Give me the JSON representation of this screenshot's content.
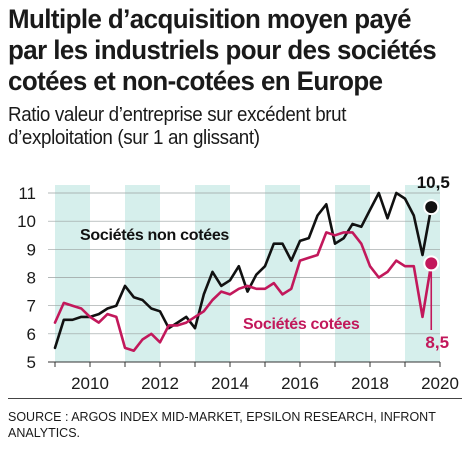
{
  "header": {
    "title": "Multiple d’acquisition moyen payé par les industriels pour des sociétés cotées et non-cotées en Europe",
    "subtitle": "Ratio valeur d’entreprise sur excédent brut d’exploitation (sur 1 an glissant)"
  },
  "source": "SOURCE : ARGOS INDEX MID-MARKET, EPSILON RESEARCH, INFRONT ANALYTICS.",
  "chart_data": {
    "type": "line",
    "x_ticks": [
      "2010",
      "2012",
      "2014",
      "2016",
      "2018",
      "2020"
    ],
    "y_ticks": [
      "5",
      "6",
      "7",
      "8",
      "9",
      "10",
      "11"
    ],
    "ylim": [
      5,
      11
    ],
    "xlim": [
      2008.8,
      2020.0
    ],
    "grid": true,
    "legend": "inline labels",
    "series": [
      {
        "name": "Sociétés non cotées",
        "color": "#111111",
        "end_label": "10,5",
        "x": [
          2009.0,
          2009.25,
          2009.5,
          2009.75,
          2010.0,
          2010.25,
          2010.5,
          2010.75,
          2011.0,
          2011.25,
          2011.5,
          2011.75,
          2012.0,
          2012.25,
          2012.5,
          2012.75,
          2013.0,
          2013.25,
          2013.5,
          2013.75,
          2014.0,
          2014.25,
          2014.5,
          2014.75,
          2015.0,
          2015.25,
          2015.5,
          2015.75,
          2016.0,
          2016.25,
          2016.5,
          2016.75,
          2017.0,
          2017.25,
          2017.5,
          2017.75,
          2018.0,
          2018.25,
          2018.5,
          2018.75,
          2019.0,
          2019.25,
          2019.5,
          2019.75
        ],
        "values": [
          5.5,
          6.5,
          6.5,
          6.6,
          6.6,
          6.7,
          6.9,
          7.0,
          7.7,
          7.3,
          7.2,
          6.9,
          6.8,
          6.2,
          6.4,
          6.6,
          6.2,
          7.4,
          8.2,
          7.7,
          7.9,
          8.4,
          7.5,
          8.1,
          8.4,
          9.2,
          9.2,
          8.6,
          9.3,
          9.4,
          10.2,
          10.6,
          9.2,
          9.4,
          9.9,
          9.8,
          10.4,
          11.0,
          10.1,
          11.0,
          10.8,
          10.2,
          8.8,
          10.5
        ]
      },
      {
        "name": "Sociétés cotées",
        "color": "#c2185b",
        "end_label": "8,5",
        "x": [
          2009.0,
          2009.25,
          2009.5,
          2009.75,
          2010.0,
          2010.25,
          2010.5,
          2010.75,
          2011.0,
          2011.25,
          2011.5,
          2011.75,
          2012.0,
          2012.25,
          2012.5,
          2012.75,
          2013.0,
          2013.25,
          2013.5,
          2013.75,
          2014.0,
          2014.25,
          2014.5,
          2014.75,
          2015.0,
          2015.25,
          2015.5,
          2015.75,
          2016.0,
          2016.25,
          2016.5,
          2016.75,
          2017.0,
          2017.25,
          2017.5,
          2017.75,
          2018.0,
          2018.25,
          2018.5,
          2018.75,
          2019.0,
          2019.25,
          2019.5,
          2019.75
        ],
        "values": [
          6.4,
          7.1,
          7.0,
          6.9,
          6.6,
          6.4,
          6.7,
          6.6,
          5.5,
          5.4,
          5.8,
          6.0,
          5.7,
          6.3,
          6.3,
          6.4,
          6.6,
          6.8,
          7.2,
          7.5,
          7.4,
          7.6,
          7.7,
          7.6,
          7.6,
          7.8,
          7.4,
          7.6,
          8.6,
          8.7,
          8.8,
          9.6,
          9.5,
          9.6,
          9.6,
          9.2,
          8.4,
          8.0,
          8.2,
          8.6,
          8.4,
          8.4,
          6.6,
          8.5
        ]
      }
    ]
  }
}
